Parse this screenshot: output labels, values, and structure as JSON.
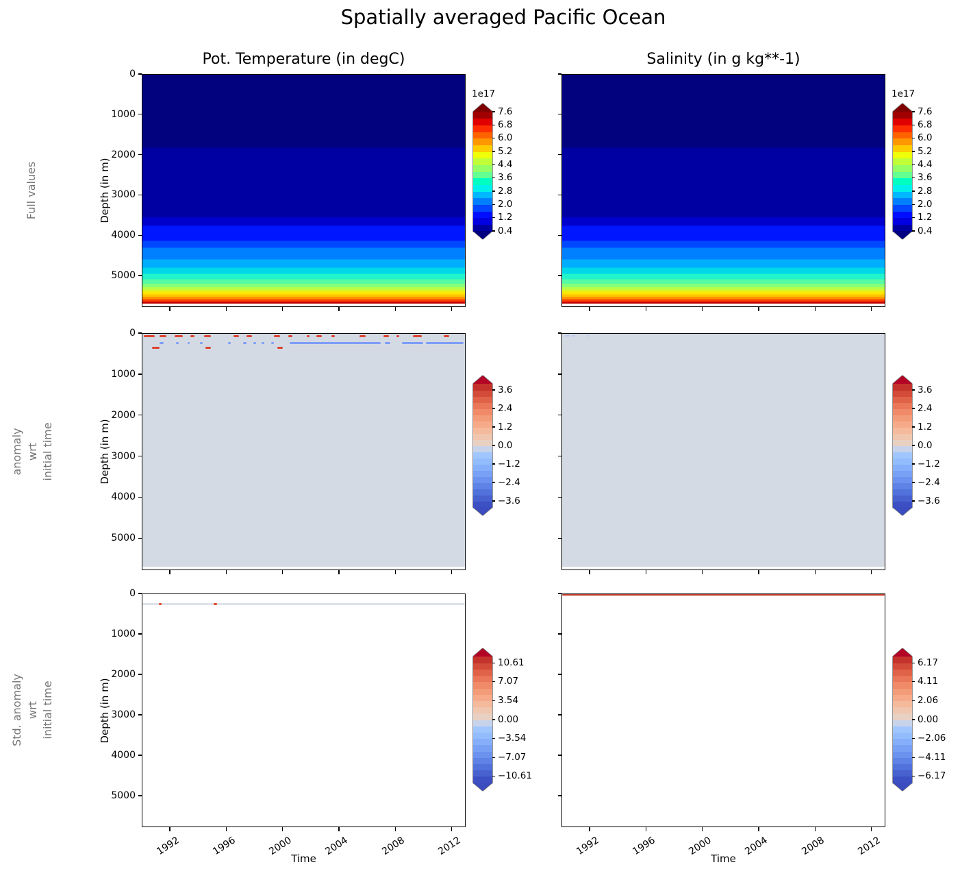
{
  "chart_data": {
    "type": "heatmap",
    "suptitle": "Spatially averaged Pacific Ocean",
    "column_titles": [
      "Pot. Temperature (in degC)",
      "Salinity (in g kg**-1)"
    ],
    "row_labels": [
      "Full values",
      "anomaly\nwrt\ninitial time",
      "Std. anomaly\nwrt\ninitial time"
    ],
    "x_axis": {
      "label": "Time",
      "range": [
        1990,
        2013
      ],
      "tick_values": [
        1992,
        1996,
        2000,
        2004,
        2008,
        2012
      ],
      "tick_labels": [
        "1992",
        "1996",
        "2000",
        "2004",
        "2008",
        "2012"
      ]
    },
    "y_axis": {
      "label": "Depth (in m)",
      "range": [
        0,
        5780
      ],
      "tick_values": [
        0,
        1000,
        2000,
        3000,
        4000,
        5000
      ],
      "tick_labels": [
        "0",
        "1000",
        "2000",
        "3000",
        "4000",
        "5000"
      ]
    },
    "palettes": {
      "jet18": [
        "#0000a0",
        "#0000e0",
        "#000eff",
        "#0047ff",
        "#0080ff",
        "#00b8ff",
        "#00f1ec",
        "#00ffc0",
        "#64ff92",
        "#92ff64",
        "#c0ff37",
        "#eeff09",
        "#ffcc00",
        "#ff9700",
        "#ff6200",
        "#ff2e00",
        "#e00000",
        "#a00000"
      ],
      "coolwarm20": [
        "#3d50c3",
        "#4761cf",
        "#5272db",
        "#5e82e5",
        "#6b92ee",
        "#78a1f5",
        "#85affa",
        "#93bcfd",
        "#a1c6fd",
        "#c6d3ea",
        "#e8d0c2",
        "#f0c6ae",
        "#f5b99c",
        "#f6aa8a",
        "#f49c79",
        "#f08a68",
        "#e97758",
        "#e06248",
        "#d34b39",
        "#c3322b"
      ]
    },
    "cells": [
      {
        "key": "full_temperature",
        "name": "plot-full-temperature",
        "bands": [
          [
            0,
            1820,
            "#02027f"
          ],
          [
            1820,
            3555,
            "#0000a2"
          ],
          [
            3555,
            3770,
            "#0000cd"
          ],
          [
            3770,
            4145,
            "#0016ff"
          ],
          [
            4145,
            4320,
            "#0048ff"
          ],
          [
            4320,
            4610,
            "#0080ff"
          ],
          [
            4610,
            4810,
            "#00aeff"
          ],
          [
            4810,
            4970,
            "#00d8e8"
          ],
          [
            4970,
            5100,
            "#22f4cc"
          ],
          [
            5100,
            5215,
            "#55fba5"
          ],
          [
            5215,
            5300,
            "#87ff78"
          ],
          [
            5300,
            5365,
            "#b4ff4b"
          ],
          [
            5365,
            5415,
            "#ddf626"
          ],
          [
            5415,
            5480,
            "#fce803"
          ],
          [
            5480,
            5540,
            "#ffc400"
          ],
          [
            5540,
            5590,
            "#ff9400"
          ],
          [
            5590,
            5635,
            "#ff5a00"
          ],
          [
            5635,
            5675,
            "#f02800"
          ],
          [
            5675,
            5710,
            "#c00000"
          ],
          [
            5710,
            5780,
            "#ffffff"
          ]
        ],
        "marks": [],
        "colorbar": {
          "palette": "jet18",
          "under": "#000080",
          "over": "#800000",
          "exponent": "1e17",
          "inset_bands": 0,
          "tick_labels": [
            "7.6",
            "6.8",
            "6.0",
            "5.2",
            "4.4",
            "3.6",
            "2.8",
            "2.0",
            "1.2",
            "0.4"
          ]
        }
      },
      {
        "key": "full_salinity",
        "name": "plot-full-salinity",
        "bands": [
          [
            0,
            1820,
            "#02027f"
          ],
          [
            1820,
            3555,
            "#0000a2"
          ],
          [
            3555,
            3770,
            "#0000cd"
          ],
          [
            3770,
            4145,
            "#0016ff"
          ],
          [
            4145,
            4320,
            "#0048ff"
          ],
          [
            4320,
            4610,
            "#0080ff"
          ],
          [
            4610,
            4810,
            "#00aeff"
          ],
          [
            4810,
            4970,
            "#00d8e8"
          ],
          [
            4970,
            5100,
            "#22f4cc"
          ],
          [
            5100,
            5215,
            "#55fba5"
          ],
          [
            5215,
            5300,
            "#87ff78"
          ],
          [
            5300,
            5365,
            "#b4ff4b"
          ],
          [
            5365,
            5415,
            "#ddf626"
          ],
          [
            5415,
            5480,
            "#fce803"
          ],
          [
            5480,
            5540,
            "#ffc400"
          ],
          [
            5540,
            5590,
            "#ff9400"
          ],
          [
            5590,
            5635,
            "#ff5a00"
          ],
          [
            5635,
            5675,
            "#f02800"
          ],
          [
            5675,
            5710,
            "#c00000"
          ],
          [
            5710,
            5780,
            "#ffffff"
          ]
        ],
        "marks": [],
        "colorbar": {
          "palette": "jet18",
          "under": "#000080",
          "over": "#800000",
          "exponent": "1e17",
          "inset_bands": 0,
          "tick_labels": [
            "7.6",
            "6.8",
            "6.0",
            "5.2",
            "4.4",
            "3.6",
            "2.8",
            "2.0",
            "1.2",
            "0.4"
          ]
        }
      },
      {
        "key": "anomaly_temperature",
        "name": "plot-anomaly-temperature",
        "bands": [
          [
            0,
            5710,
            "#d4dae3"
          ],
          [
            5710,
            5780,
            "#fafbfc"
          ]
        ],
        "marks": [
          {
            "name": "anomaly-red-dashes",
            "depth": 55,
            "h": 3,
            "color": "#dc4330",
            "segments": [
              [
                1990.1,
                1990.9
              ],
              [
                1991.2,
                1991.7
              ],
              [
                1992.3,
                1992.9
              ],
              [
                1993.4,
                1993.7
              ],
              [
                1994.4,
                1994.9
              ],
              [
                1996.5,
                1996.9
              ],
              [
                1997.4,
                1997.8
              ],
              [
                1999.4,
                1999.8
              ],
              [
                2000.4,
                2000.7
              ],
              [
                2001.7,
                2001.9
              ],
              [
                2002.4,
                2002.8
              ],
              [
                2003.5,
                2003.7
              ],
              [
                2005.5,
                2005.9
              ],
              [
                2007.2,
                2007.6
              ],
              [
                2008.1,
                2008.3
              ],
              [
                2009.3,
                2009.9
              ],
              [
                2011.5,
                2011.9
              ]
            ]
          },
          {
            "name": "anomaly-blue-dashes",
            "depth": 235,
            "h": 3,
            "color": "#7f9df8",
            "segments": [
              [
                1991.2,
                1991.5
              ],
              [
                1992.4,
                1992.6
              ],
              [
                1993.2,
                1993.35
              ],
              [
                1994.1,
                1994.3
              ],
              [
                1996.1,
                1996.3
              ],
              [
                1997.2,
                1997.4
              ],
              [
                1997.9,
                1998.1
              ],
              [
                1998.5,
                1998.7
              ],
              [
                1999.2,
                1999.4
              ],
              [
                2000.5,
                2007.0
              ],
              [
                2007.3,
                2007.7
              ],
              [
                2008.5,
                2010.0
              ],
              [
                2010.2,
                2012.9
              ]
            ]
          },
          {
            "name": "anomaly-red-dots",
            "depth": 340,
            "h": 3,
            "color": "#dc4330",
            "segments": [
              [
                1990.7,
                1991.2
              ],
              [
                1994.5,
                1994.9
              ],
              [
                1999.6,
                2000.0
              ]
            ]
          }
        ],
        "colorbar": {
          "palette": "coolwarm20",
          "under": "#3b4cc0",
          "over": "#b40426",
          "exponent": null,
          "inset_bands": 1,
          "tick_labels": [
            "3.6",
            "2.4",
            "1.2",
            "0.0",
            "−1.2",
            "−2.4",
            "−3.6"
          ]
        }
      },
      {
        "key": "anomaly_salinity",
        "name": "plot-anomaly-salinity",
        "bands": [
          [
            0,
            5710,
            "#d4dae3"
          ],
          [
            5710,
            5780,
            "#fafbfc"
          ]
        ],
        "marks": [
          {
            "name": "anomaly-blue-faint-dashes",
            "depth": 55,
            "h": 2,
            "color": "#b7c7f0",
            "segments": [
              [
                1990.2,
                1990.6
              ],
              [
                1990.75,
                1990.95
              ],
              [
                1991.8,
                1991.95
              ]
            ]
          }
        ],
        "colorbar": {
          "palette": "coolwarm20",
          "under": "#3b4cc0",
          "over": "#b40426",
          "exponent": null,
          "inset_bands": 1,
          "tick_labels": [
            "3.6",
            "2.4",
            "1.2",
            "0.0",
            "−1.2",
            "−2.4",
            "−3.6"
          ]
        }
      },
      {
        "key": "std_anomaly_temperature",
        "name": "plot-std-anomaly-temperature",
        "bands": [
          [
            0,
            5780,
            "#ffffff"
          ]
        ],
        "marks": [
          {
            "name": "std-gray-line",
            "depth": 240,
            "h": 3,
            "color": "#dde2eb",
            "segments": [
              [
                1990,
                2013
              ]
            ]
          },
          {
            "name": "std-red-dots",
            "depth": 240,
            "h": 3,
            "color": "#e0482e",
            "segments": [
              [
                1991.15,
                1991.35
              ],
              [
                1995.1,
                1995.3
              ]
            ]
          }
        ],
        "colorbar": {
          "palette": "coolwarm20",
          "under": "#3b4cc0",
          "over": "#b40426",
          "exponent": null,
          "inset_bands": 1,
          "tick_labels": [
            "10.61",
            "7.07",
            "3.54",
            "0.00",
            "−3.54",
            "−7.07",
            "−10.61"
          ]
        }
      },
      {
        "key": "std_anomaly_salinity",
        "name": "plot-std-anomaly-salinity",
        "bands": [
          [
            0,
            5780,
            "#ffffff"
          ]
        ],
        "marks": [
          {
            "name": "std-red-line",
            "depth": 25,
            "h": 2,
            "color": "#c23b2a",
            "segments": [
              [
                1990,
                2013
              ]
            ]
          }
        ],
        "colorbar": {
          "palette": "coolwarm20",
          "under": "#3b4cc0",
          "over": "#b40426",
          "exponent": null,
          "inset_bands": 1,
          "tick_labels": [
            "6.17",
            "4.11",
            "2.06",
            "0.00",
            "−2.06",
            "−4.11",
            "−6.17"
          ]
        }
      }
    ]
  }
}
